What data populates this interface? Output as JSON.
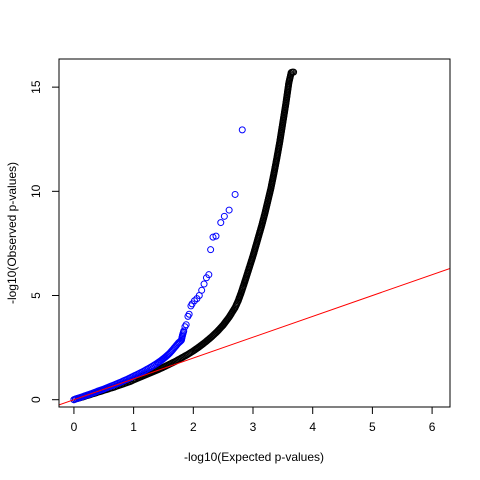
{
  "chart_data": {
    "type": "scatter",
    "title": "",
    "xlabel": "-log10(Expected p-values)",
    "ylabel": "-log10(Observed p-values)",
    "xlim": [
      -0.25,
      6.3
    ],
    "ylim": [
      -0.35,
      16.35
    ],
    "x_ticks": [
      0,
      1,
      2,
      3,
      4,
      5,
      6
    ],
    "x_tick_labels": [
      "0",
      "1",
      "2",
      "3",
      "4",
      "5",
      "6"
    ],
    "y_ticks": [
      0,
      5,
      10,
      15
    ],
    "y_tick_labels": [
      "0",
      "5",
      "10",
      "15"
    ],
    "grid": false,
    "legend": "none",
    "series": [
      {
        "color": "#000000",
        "marker": "open-circle",
        "points": [
          [
            0.0,
            0.0
          ],
          [
            0.05,
            0.05
          ],
          [
            0.1,
            0.09
          ],
          [
            0.15,
            0.13
          ],
          [
            0.2,
            0.18
          ],
          [
            0.25,
            0.22
          ],
          [
            0.3,
            0.27
          ],
          [
            0.35,
            0.31
          ],
          [
            0.4,
            0.36
          ],
          [
            0.45,
            0.4
          ],
          [
            0.5,
            0.45
          ],
          [
            0.55,
            0.49
          ],
          [
            0.6,
            0.54
          ],
          [
            0.65,
            0.58
          ],
          [
            0.7,
            0.63
          ],
          [
            0.75,
            0.68
          ],
          [
            0.8,
            0.73
          ],
          [
            0.85,
            0.78
          ],
          [
            0.9,
            0.83
          ],
          [
            0.95,
            0.88
          ],
          [
            1.0,
            0.95
          ],
          [
            1.1,
            1.07
          ],
          [
            1.2,
            1.19
          ],
          [
            1.3,
            1.31
          ],
          [
            1.4,
            1.43
          ],
          [
            1.5,
            1.56
          ],
          [
            1.6,
            1.7
          ],
          [
            1.7,
            1.84
          ],
          [
            1.8,
            2.0
          ],
          [
            1.9,
            2.16
          ],
          [
            2.0,
            2.34
          ],
          [
            2.1,
            2.54
          ],
          [
            2.2,
            2.76
          ],
          [
            2.3,
            3.0
          ],
          [
            2.4,
            3.27
          ],
          [
            2.5,
            3.58
          ],
          [
            2.6,
            3.96
          ],
          [
            2.7,
            4.42
          ],
          [
            2.75,
            4.73
          ],
          [
            2.8,
            5.12
          ],
          [
            2.85,
            5.55
          ],
          [
            2.9,
            6.0
          ],
          [
            2.95,
            6.45
          ],
          [
            3.0,
            6.9
          ],
          [
            3.05,
            7.4
          ],
          [
            3.1,
            7.9
          ],
          [
            3.15,
            8.4
          ],
          [
            3.2,
            8.95
          ],
          [
            3.25,
            9.55
          ],
          [
            3.3,
            10.15
          ],
          [
            3.35,
            10.85
          ],
          [
            3.4,
            11.6
          ],
          [
            3.45,
            12.4
          ],
          [
            3.5,
            13.3
          ],
          [
            3.55,
            14.2
          ],
          [
            3.58,
            14.8
          ],
          [
            3.6,
            15.2
          ],
          [
            3.62,
            15.45
          ],
          [
            3.64,
            15.7
          ],
          [
            3.66,
            15.72
          ],
          [
            3.68,
            15.72
          ]
        ]
      },
      {
        "color": "#0000ff",
        "marker": "open-circle",
        "points": [
          [
            0.0,
            0.0
          ],
          [
            0.05,
            0.05
          ],
          [
            0.1,
            0.1
          ],
          [
            0.15,
            0.15
          ],
          [
            0.2,
            0.2
          ],
          [
            0.25,
            0.25
          ],
          [
            0.3,
            0.3
          ],
          [
            0.35,
            0.35
          ],
          [
            0.4,
            0.41
          ],
          [
            0.45,
            0.46
          ],
          [
            0.5,
            0.51
          ],
          [
            0.55,
            0.57
          ],
          [
            0.6,
            0.63
          ],
          [
            0.65,
            0.68
          ],
          [
            0.7,
            0.74
          ],
          [
            0.75,
            0.8
          ],
          [
            0.8,
            0.86
          ],
          [
            0.85,
            0.93
          ],
          [
            0.9,
            0.99
          ],
          [
            0.95,
            1.06
          ],
          [
            1.0,
            1.13
          ],
          [
            1.05,
            1.2
          ],
          [
            1.1,
            1.27
          ],
          [
            1.15,
            1.34
          ],
          [
            1.2,
            1.42
          ],
          [
            1.25,
            1.5
          ],
          [
            1.3,
            1.58
          ],
          [
            1.35,
            1.67
          ],
          [
            1.4,
            1.76
          ],
          [
            1.45,
            1.86
          ],
          [
            1.5,
            1.97
          ],
          [
            1.55,
            2.09
          ],
          [
            1.6,
            2.22
          ],
          [
            1.65,
            2.38
          ],
          [
            1.7,
            2.55
          ],
          [
            1.75,
            2.72
          ],
          [
            1.8,
            2.85
          ],
          [
            1.82,
            3.1
          ],
          [
            1.84,
            3.3
          ],
          [
            1.86,
            3.5
          ],
          [
            1.88,
            3.6
          ],
          [
            1.91,
            4.0
          ],
          [
            1.93,
            4.1
          ],
          [
            1.96,
            4.5
          ],
          [
            1.98,
            4.6
          ],
          [
            2.02,
            4.75
          ],
          [
            2.06,
            4.85
          ],
          [
            2.1,
            5.0
          ],
          [
            2.14,
            5.25
          ],
          [
            2.18,
            5.55
          ],
          [
            2.22,
            5.85
          ],
          [
            2.26,
            6.0
          ],
          [
            2.29,
            7.2
          ],
          [
            2.33,
            7.8
          ],
          [
            2.38,
            7.85
          ],
          [
            2.46,
            8.5
          ],
          [
            2.52,
            8.8
          ],
          [
            2.6,
            9.1
          ],
          [
            2.7,
            9.85
          ],
          [
            2.82,
            12.95
          ]
        ]
      },
      {
        "color": "#ff0000",
        "marker": "line",
        "points": [
          [
            -0.25,
            -0.25
          ],
          [
            6.3,
            6.3
          ]
        ]
      }
    ]
  }
}
